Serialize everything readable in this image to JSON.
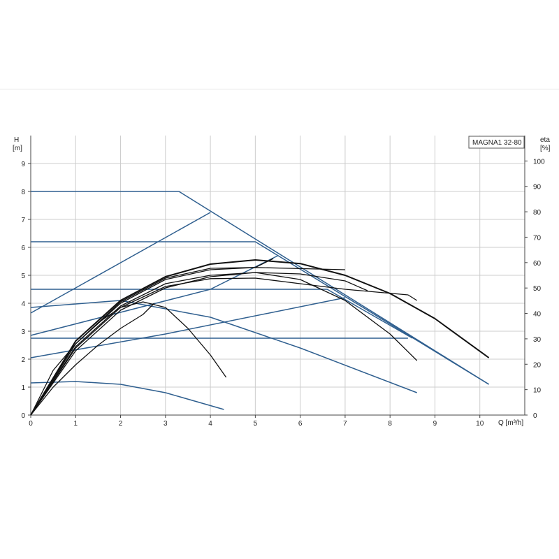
{
  "chart_data": {
    "type": "line",
    "title": "MAGNA1 32-80",
    "xlabel": "Q [m³/h]",
    "ylabel_left": [
      "H",
      "[m]"
    ],
    "ylabel_right": [
      "eta",
      "[%]"
    ],
    "xlim": [
      0,
      11
    ],
    "ylim_left": [
      0,
      10
    ],
    "ylim_right": [
      0,
      110
    ],
    "x_ticks": [
      0,
      1,
      2,
      3,
      4,
      5,
      6,
      7,
      8,
      9,
      10
    ],
    "y_ticks_left": [
      0,
      1,
      2,
      3,
      4,
      5,
      6,
      7,
      8,
      9
    ],
    "y_ticks_right": [
      0,
      10,
      20,
      30,
      40,
      50,
      60,
      70,
      80,
      90,
      100
    ],
    "grid": true,
    "colors": {
      "control_curve": "#2f5f8f",
      "performance_curve": "#111111",
      "grid": "#cccccc"
    },
    "series": [
      {
        "kind": "control",
        "points": [
          [
            0,
            8.0
          ],
          [
            3.3,
            8.0
          ],
          [
            10.2,
            1.1
          ]
        ]
      },
      {
        "kind": "control",
        "points": [
          [
            0,
            6.2
          ],
          [
            5.0,
            6.2
          ],
          [
            10.2,
            1.1
          ]
        ]
      },
      {
        "kind": "control",
        "points": [
          [
            0,
            4.5
          ],
          [
            6.6,
            4.5
          ],
          [
            8.5,
            2.75
          ]
        ]
      },
      {
        "kind": "control",
        "points": [
          [
            0,
            2.75
          ],
          [
            8.4,
            2.75
          ]
        ]
      },
      {
        "kind": "control",
        "points": [
          [
            0,
            3.65
          ],
          [
            4.0,
            7.25
          ]
        ]
      },
      {
        "kind": "control",
        "points": [
          [
            0,
            2.85
          ],
          [
            4.0,
            4.5
          ],
          [
            5.5,
            5.7
          ]
        ]
      },
      {
        "kind": "control",
        "points": [
          [
            0,
            2.05
          ],
          [
            3.0,
            2.9
          ],
          [
            7.0,
            4.2
          ]
        ]
      },
      {
        "kind": "control",
        "points": [
          [
            0,
            3.85
          ],
          [
            2.0,
            4.1
          ],
          [
            4.0,
            3.5
          ],
          [
            6.0,
            2.4
          ],
          [
            8.6,
            0.8
          ]
        ]
      },
      {
        "kind": "control",
        "points": [
          [
            0,
            1.15
          ],
          [
            1.0,
            1.2
          ],
          [
            2.0,
            1.1
          ],
          [
            3.0,
            0.8
          ],
          [
            4.3,
            0.2
          ]
        ]
      },
      {
        "kind": "performance",
        "points": [
          [
            0,
            0
          ],
          [
            1,
            2.65
          ],
          [
            2,
            4.1
          ],
          [
            3,
            4.95
          ],
          [
            4,
            5.4
          ],
          [
            5,
            5.55
          ],
          [
            6,
            5.42
          ],
          [
            7,
            5.0
          ],
          [
            8,
            4.35
          ],
          [
            9,
            3.45
          ],
          [
            10.2,
            2.05
          ]
        ]
      },
      {
        "kind": "performance",
        "points": [
          [
            0,
            0
          ],
          [
            1,
            2.55
          ],
          [
            2,
            4.05
          ],
          [
            3,
            4.9
          ],
          [
            4,
            5.25
          ],
          [
            5,
            5.28
          ],
          [
            6,
            5.24
          ],
          [
            7,
            5.2
          ]
        ]
      },
      {
        "kind": "performance",
        "points": [
          [
            0,
            0
          ],
          [
            1,
            2.45
          ],
          [
            2,
            3.9
          ],
          [
            3,
            4.7
          ],
          [
            4,
            5.0
          ],
          [
            5,
            5.1
          ],
          [
            6,
            5.05
          ],
          [
            7,
            4.8
          ],
          [
            7.5,
            4.45
          ]
        ]
      },
      {
        "kind": "performance",
        "points": [
          [
            0,
            0
          ],
          [
            1,
            2.4
          ],
          [
            2,
            3.85
          ],
          [
            3,
            4.6
          ],
          [
            4,
            4.88
          ],
          [
            5,
            4.9
          ],
          [
            6,
            4.7
          ],
          [
            7,
            4.5
          ],
          [
            8.4,
            4.3
          ],
          [
            8.6,
            4.1
          ]
        ]
      },
      {
        "kind": "performance",
        "points": [
          [
            0,
            0
          ],
          [
            1,
            2.3
          ],
          [
            2,
            3.75
          ],
          [
            3,
            4.55
          ],
          [
            4,
            4.95
          ],
          [
            5,
            5.1
          ],
          [
            6,
            4.85
          ],
          [
            7,
            4.1
          ],
          [
            8,
            2.9
          ],
          [
            8.6,
            1.95
          ]
        ]
      },
      {
        "kind": "performance",
        "points": [
          [
            0,
            0
          ],
          [
            1,
            2.55
          ],
          [
            2,
            4.0
          ],
          [
            3,
            4.85
          ],
          [
            4,
            5.2
          ],
          [
            5.0,
            5.28
          ],
          [
            5.4,
            5.6
          ]
        ]
      },
      {
        "kind": "performance",
        "points": [
          [
            0,
            0
          ],
          [
            0.5,
            1.6
          ],
          [
            1,
            2.55
          ],
          [
            1.5,
            3.3
          ],
          [
            2,
            3.85
          ],
          [
            2.5,
            4.05
          ],
          [
            3,
            3.85
          ],
          [
            3.5,
            3.1
          ],
          [
            4,
            2.15
          ],
          [
            4.35,
            1.35
          ]
        ]
      },
      {
        "kind": "performance",
        "points": [
          [
            0,
            0
          ],
          [
            0.5,
            1.0
          ],
          [
            1,
            1.8
          ],
          [
            1.5,
            2.5
          ],
          [
            2,
            3.1
          ],
          [
            2.5,
            3.6
          ],
          [
            2.75,
            4.0
          ]
        ]
      }
    ]
  }
}
